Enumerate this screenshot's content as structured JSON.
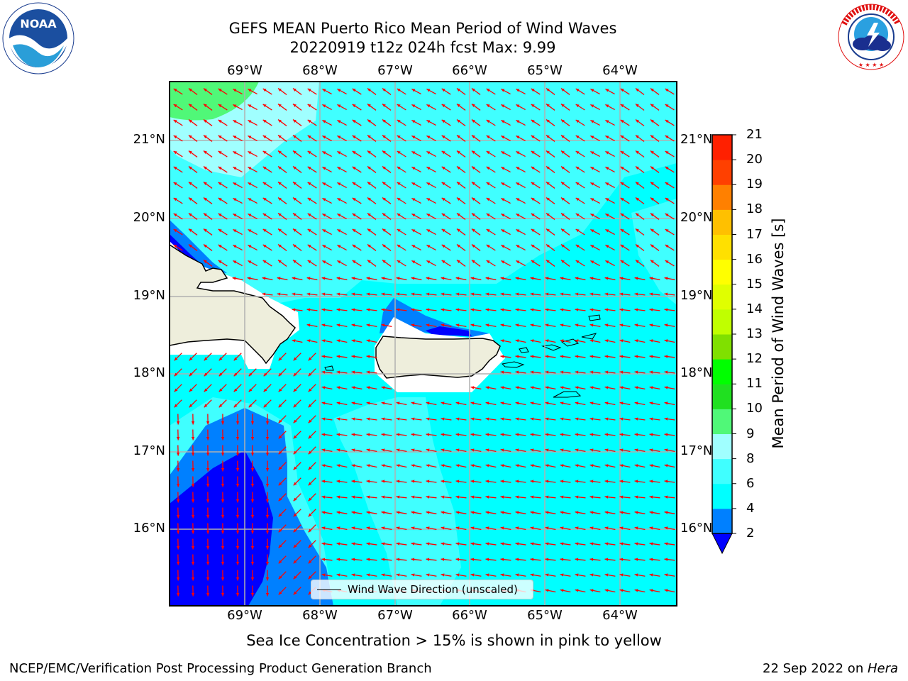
{
  "title": {
    "line1": "GEFS MEAN Puerto Rico Mean Period of Wind Waves",
    "line2": "20220919 t12z 024h fcst   Max: 9.99"
  },
  "axes": {
    "lon_labels": [
      "69°W",
      "68°W",
      "67°W",
      "66°W",
      "65°W",
      "64°W"
    ],
    "lat_labels": [
      "21°N",
      "20°N",
      "19°N",
      "18°N",
      "17°N",
      "16°N"
    ]
  },
  "legend": {
    "label": "Wind Wave Direction (unscaled)"
  },
  "colorbar": {
    "title": "Mean Period of Wind Waves [s]",
    "ticks": [
      "2",
      "4",
      "6",
      "8",
      "9",
      "10",
      "11",
      "12",
      "13",
      "14",
      "15",
      "16",
      "17",
      "18",
      "19",
      "20",
      "21"
    ],
    "colors": [
      "#0000ff",
      "#0080ff",
      "#00ffff",
      "#40ffff",
      "#a0ffff",
      "#50f878",
      "#20e020",
      "#00ff00",
      "#80e000",
      "#c0ff00",
      "#e0ff00",
      "#ffff00",
      "#ffe000",
      "#ffc000",
      "#ff8000",
      "#ff4000",
      "#ff2000",
      "#ff0000"
    ],
    "extend": "min"
  },
  "note": "Sea Ice Concentration > 15% is shown in pink to yellow",
  "footer": {
    "left": "NCEP/EMC/Verification Post Processing Product Generation Branch",
    "date": "22 Sep 2022 on ",
    "machine": "Hera"
  },
  "logos": {
    "left": {
      "name": "noaa-logo",
      "text": "NOAA",
      "ring_text": "NATIONAL OCEANIC AND ATMOSPHERIC ADMINISTRATION · U.S. DEPARTMENT OF COMMERCE"
    },
    "right": {
      "name": "nws-logo",
      "ring_text": "NATIONAL WEATHER SERVICE"
    }
  },
  "map_style": {
    "arrow_color": "#ff0000",
    "land_color": "#eeeedc",
    "grid_color": "#b0b0b0",
    "wave_direction": "westward (blowing toward west / north-west)"
  }
}
